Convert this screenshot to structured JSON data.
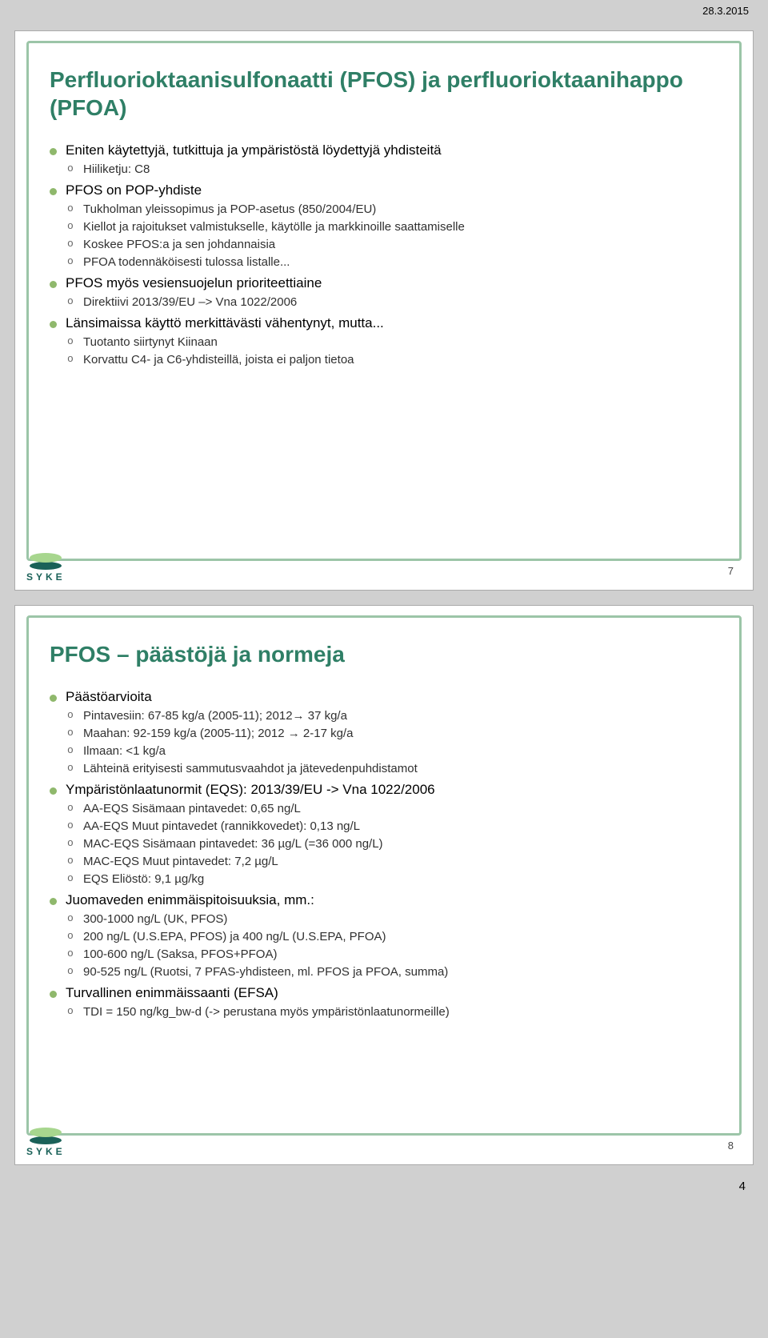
{
  "doc_date": "28.3.2015",
  "footer_page_num": "4",
  "colors": {
    "title": "#2f7f66",
    "bullet": "#8fb86c",
    "border": "#9cc5a8",
    "logo_dark": "#1a6158",
    "logo_light": "#a7d68e"
  },
  "slides": [
    {
      "page_num": "7",
      "title": "Perfluorioktaanisulfonaatti (PFOS) ja perfluorioktaanihappo (PFOA)",
      "bullets": [
        {
          "t": "Eniten käytettyjä, tutkittuja ja ympäristöstä löydettyjä yhdisteitä",
          "sub": [
            {
              "t": "Hiiliketju: C8"
            }
          ]
        },
        {
          "t": "PFOS on POP-yhdiste",
          "sub": [
            {
              "t": "Tukholman yleissopimus ja POP-asetus (850/2004/EU)"
            },
            {
              "t": "Kiellot ja rajoitukset valmistukselle, käytölle ja markkinoille saattamiselle"
            },
            {
              "t": "Koskee PFOS:a ja sen johdannaisia"
            },
            {
              "t": "PFOA todennäköisesti tulossa listalle..."
            }
          ]
        },
        {
          "t": "PFOS myös vesiensuojelun prioriteettiaine",
          "sub": [
            {
              "t": "Direktiivi 2013/39/EU –> Vna 1022/2006"
            }
          ]
        },
        {
          "t": "Länsimaissa käyttö merkittävästi vähentynyt, mutta...",
          "sub": [
            {
              "t": "Tuotanto siirtynyt Kiinaan"
            },
            {
              "t": "Korvattu C4- ja C6-yhdisteillä, joista ei paljon tietoa"
            }
          ]
        }
      ]
    },
    {
      "page_num": "8",
      "title": "PFOS – päästöjä ja normeja",
      "bullets": [
        {
          "t": "Päästöarvioita",
          "sub": [
            {
              "t": "Pintavesiin: 67-85 kg/a (2005-11); 2012→ 37 kg/a"
            },
            {
              "t": "Maahan: 92-159 kg/a (2005-11); 2012 → 2-17 kg/a"
            },
            {
              "t": "Ilmaan: <1 kg/a"
            },
            {
              "t": "Lähteinä erityisesti sammutusvaahdot ja jätevedenpuhdistamot"
            }
          ]
        },
        {
          "t": "Ympäristönlaatunormit (EQS): 2013/39/EU -> Vna 1022/2006",
          "sub": [
            {
              "t": "AA-EQS Sisämaan pintavedet: 0,65 ng/L"
            },
            {
              "t": "AA-EQS Muut pintavedet (rannikkovedet): 0,13 ng/L"
            },
            {
              "t": "MAC-EQS Sisämaan pintavedet: 36 µg/L (=36 000 ng/L)"
            },
            {
              "t": "MAC-EQS Muut pintavedet: 7,2 µg/L"
            },
            {
              "t": "EQS Eliöstö: 9,1 µg/kg"
            }
          ]
        },
        {
          "t": "Juomaveden enimmäispitoisuuksia, mm.:",
          "sub": [
            {
              "t": "300-1000 ng/L (UK, PFOS)"
            },
            {
              "t": "200 ng/L (U.S.EPA, PFOS) ja 400 ng/L (U.S.EPA, PFOA)"
            },
            {
              "t": "100-600 ng/L (Saksa, PFOS+PFOA)"
            },
            {
              "t": "90-525 ng/L (Ruotsi, 7 PFAS-yhdisteen, ml. PFOS ja PFOA, summa)"
            }
          ]
        },
        {
          "t": "Turvallinen enimmäissaanti (EFSA)",
          "sub": [
            {
              "t": "TDI = 150 ng/kg_bw-d (-> perustana myös ympäristönlaatunormeille)"
            }
          ]
        }
      ]
    }
  ]
}
